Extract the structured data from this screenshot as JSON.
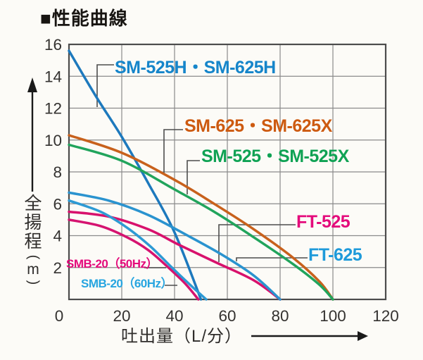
{
  "title": "■性能曲線",
  "axes": {
    "x": {
      "title": "吐出量（L/分）",
      "ticks": [
        0,
        20,
        40,
        60,
        80,
        100,
        120
      ]
    },
    "y": {
      "title_stack": [
        "全",
        "揚",
        "程"
      ],
      "unit_open": "(",
      "unit": "m",
      "unit_close": ")",
      "ticks": [
        16,
        14,
        12,
        10,
        8,
        6,
        4,
        2
      ]
    }
  },
  "chart_data": {
    "type": "line",
    "title": "性能曲線",
    "xlabel": "吐出量（L/分）",
    "ylabel": "全揚程（m）",
    "xlim": [
      0,
      120
    ],
    "ylim": [
      0,
      16
    ],
    "grid": true,
    "legend_position": "inline-annotations",
    "series": [
      {
        "name": "SM-525H・SM-625H",
        "color": "#1d79bd",
        "label_color": "#1585ca",
        "points": [
          [
            0,
            15.6
          ],
          [
            10,
            12.8
          ],
          [
            20,
            10.2
          ],
          [
            30,
            7.3
          ],
          [
            40,
            4.2
          ],
          [
            50,
            0
          ]
        ]
      },
      {
        "name": "SM-625・SM-625X",
        "color": "#c8611c",
        "label_color": "#cd5a10",
        "points": [
          [
            0,
            10.3
          ],
          [
            20,
            9.2
          ],
          [
            40,
            7.5
          ],
          [
            55,
            6.0
          ],
          [
            70,
            4.4
          ],
          [
            85,
            2.6
          ],
          [
            95,
            1.1
          ],
          [
            100,
            0
          ]
        ]
      },
      {
        "name": "SM-525・SM-525X",
        "color": "#21a45c",
        "label_color": "#0fa254",
        "points": [
          [
            0,
            9.7
          ],
          [
            20,
            8.7
          ],
          [
            40,
            6.9
          ],
          [
            55,
            5.5
          ],
          [
            70,
            3.9
          ],
          [
            85,
            2.2
          ],
          [
            95,
            0.9
          ],
          [
            100,
            0
          ]
        ]
      },
      {
        "name": "FT-525",
        "color": "#d8116c",
        "label_color": "#e40a7b",
        "points": [
          [
            0,
            5.5
          ],
          [
            15,
            5.2
          ],
          [
            30,
            4.4
          ],
          [
            42,
            3.4
          ],
          [
            56,
            2.3
          ],
          [
            70,
            1.2
          ],
          [
            80,
            0
          ]
        ]
      },
      {
        "name": "FT-625",
        "color": "#2a93cf",
        "label_color": "#1e9ada",
        "points": [
          [
            0,
            6.7
          ],
          [
            15,
            6.2
          ],
          [
            30,
            5.3
          ],
          [
            45,
            4.0
          ],
          [
            58,
            2.8
          ],
          [
            70,
            1.5
          ],
          [
            80,
            0
          ]
        ]
      },
      {
        "name": "SMB-20（50Hz）",
        "color": "#d51370",
        "label_color": "#e40a7b",
        "points": [
          [
            0,
            5.0
          ],
          [
            12,
            4.6
          ],
          [
            22,
            3.9
          ],
          [
            30,
            3.1
          ],
          [
            37,
            2.1
          ],
          [
            44,
            1.0
          ],
          [
            49,
            0
          ]
        ]
      },
      {
        "name": "SMB-20（60Hz）",
        "color": "#2d9ad4",
        "label_color": "#27a5e0",
        "points": [
          [
            0,
            6.2
          ],
          [
            12,
            5.5
          ],
          [
            22,
            4.5
          ],
          [
            31,
            3.3
          ],
          [
            39,
            2.0
          ],
          [
            46,
            0.9
          ],
          [
            52,
            0
          ]
        ]
      }
    ]
  }
}
